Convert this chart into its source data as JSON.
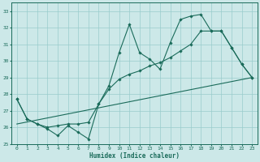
{
  "xlabel": "Humidex (Indice chaleur)",
  "bg_color": "#cce8e8",
  "grid_color": "#99cccc",
  "line_color": "#1a6b5a",
  "xlim": [
    -0.5,
    23.5
  ],
  "ylim": [
    25,
    33.5
  ],
  "xticks": [
    0,
    1,
    2,
    3,
    4,
    5,
    6,
    7,
    8,
    9,
    10,
    11,
    12,
    13,
    14,
    15,
    16,
    17,
    18,
    19,
    20,
    21,
    22,
    23
  ],
  "yticks": [
    25,
    26,
    27,
    28,
    29,
    30,
    31,
    32,
    33
  ],
  "line1_x": [
    0,
    1,
    2,
    3,
    4,
    5,
    6,
    7,
    8,
    9,
    10,
    11,
    12,
    13,
    14,
    15,
    16,
    17,
    18,
    19,
    20,
    21,
    22,
    23
  ],
  "line1_y": [
    27.7,
    26.5,
    26.2,
    25.9,
    25.5,
    26.1,
    25.7,
    25.3,
    27.4,
    28.5,
    30.5,
    32.2,
    30.5,
    30.1,
    29.5,
    31.1,
    32.5,
    32.7,
    32.8,
    31.8,
    31.8,
    30.8,
    29.8,
    29.0
  ],
  "line2_x": [
    0,
    23
  ],
  "line2_y": [
    26.2,
    29.0
  ],
  "line3_x": [
    0,
    1,
    2,
    3,
    4,
    5,
    6,
    7,
    8,
    9,
    10,
    11,
    12,
    13,
    14,
    15,
    16,
    17,
    18,
    19,
    20,
    21,
    22,
    23
  ],
  "line3_y": [
    27.7,
    26.5,
    26.2,
    26.0,
    26.1,
    26.2,
    26.2,
    26.3,
    27.4,
    28.3,
    28.9,
    29.2,
    29.4,
    29.7,
    29.9,
    30.2,
    30.6,
    31.0,
    31.8,
    31.8,
    31.8,
    30.8,
    29.8,
    29.0
  ]
}
